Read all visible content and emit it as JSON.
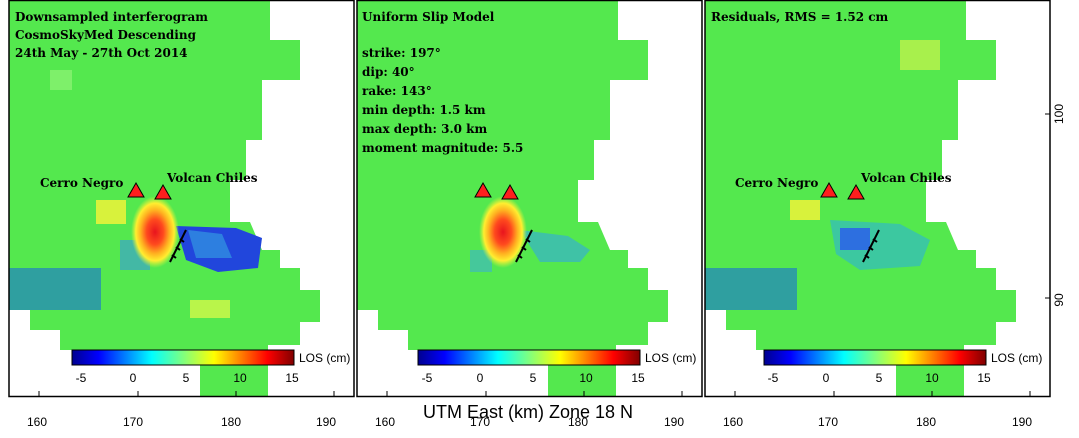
{
  "figure": {
    "xlabel": "UTM East (km) Zone 18 N",
    "x_ticks": [
      "160",
      "170",
      "180",
      "190"
    ],
    "y_ticks": [
      "100",
      "90"
    ]
  },
  "panels": [
    {
      "name": "interferogram",
      "title_lines": [
        "Downsampled interferogram",
        "CosmoSkyMed Descending",
        "24th May - 27th Oct 2014"
      ],
      "params": [],
      "volcano_labels": [
        "Cerro Negro",
        "Volcan Chiles"
      ],
      "colorbar": {
        "label": "LOS (cm)",
        "ticks": [
          "-5",
          "0",
          "5",
          "10",
          "15"
        ]
      }
    },
    {
      "name": "uniform-slip-model",
      "title_lines": [
        "Uniform Slip Model"
      ],
      "params": [
        "strike: 197°",
        "dip: 40°",
        "rake: 143°",
        "min depth: 1.5 km",
        "max depth: 3.0 km",
        "moment magnitude: 5.5"
      ],
      "volcano_labels": [],
      "colorbar": {
        "label": "LOS (cm)",
        "ticks": [
          "-5",
          "0",
          "5",
          "10",
          "15"
        ]
      }
    },
    {
      "name": "residuals",
      "title_lines": [
        "Residuals, RMS = 1.52 cm"
      ],
      "params": [],
      "volcano_labels": [
        "Cerro Negro",
        "Volcan Chiles"
      ],
      "colorbar": {
        "label": "LOS (cm)",
        "ticks": [
          "-5",
          "0",
          "5",
          "10",
          "15"
        ]
      }
    }
  ],
  "colors": {
    "background": "#54e84e",
    "outer": "#ffffff",
    "volcano": "#ff1e1e"
  }
}
